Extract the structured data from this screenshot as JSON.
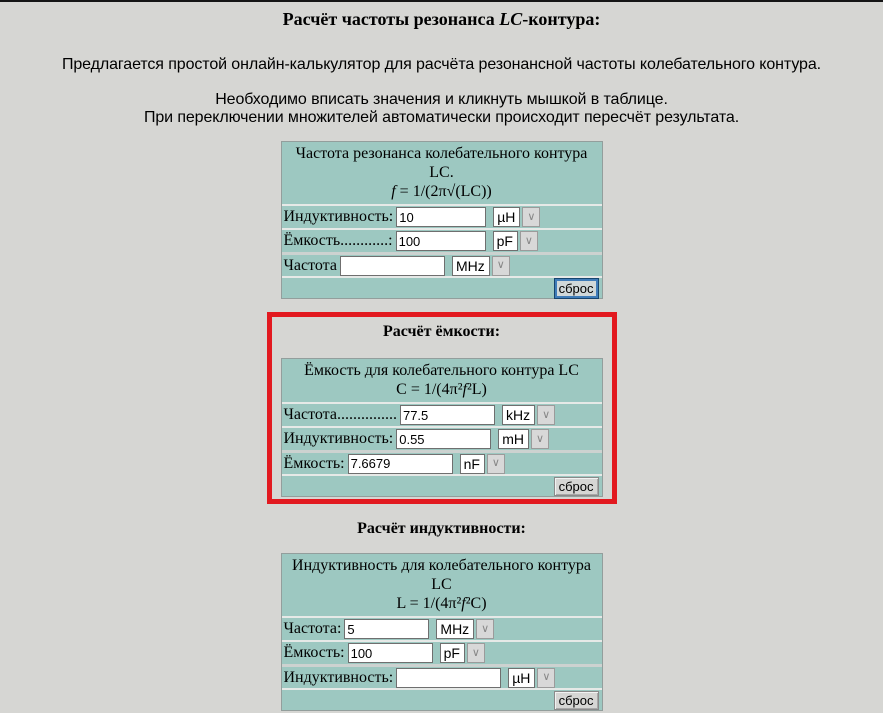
{
  "title": {
    "parts": [
      {
        "t": "Расчёт частоты резонанса "
      },
      {
        "t": "LC"
      },
      {
        "t": "-контура:"
      }
    ]
  },
  "intro": "Предлагается простой онлайн-калькулятор для расчёта резонансной частоты колебательного контура.",
  "notes": [
    "Необходимо вписать значения и кликнуть мышкой в таблице.",
    "При переключении множителей автоматически происходит пересчёт результата."
  ],
  "icons": {
    "chevron_down": "∨"
  },
  "colors": {
    "page_bg": "#d6d6d3",
    "table_bg": "#9dc8c1",
    "highlight_border": "#e2191f",
    "focus_blue": "#3f7cb8"
  },
  "sections": [
    {
      "table": {
        "header_lines": [
          "Частота резонанса колебательного контура",
          "LC."
        ],
        "formula": [
          {
            "t": "f"
          },
          {
            "t": " = 1/(2π√(LC))"
          }
        ],
        "rows": [
          {
            "label": "Индуктивность:",
            "value": "10",
            "unit": "µH"
          },
          {
            "label": "Ёмкость............:",
            "value": "100",
            "unit": "pF"
          },
          {
            "label": "Частота",
            "value": "",
            "unit": "MHz"
          }
        ],
        "reset_label": "сброс"
      }
    },
    {
      "heading": "Расчёт ёмкости:",
      "table": {
        "header_lines": [
          "Ёмкость для колебательного контура LC"
        ],
        "formula": [
          {
            "t": "C = 1/(4π²"
          },
          {
            "t": "f"
          },
          {
            "t": "²L)"
          }
        ],
        "rows": [
          {
            "label": "Частота...............",
            "value": "77.5",
            "unit": "kHz"
          },
          {
            "label": "Индуктивность:",
            "value": "0.55",
            "unit": "mH"
          },
          {
            "label": "Ёмкость:",
            "value": "7.6679",
            "unit": "nF"
          }
        ],
        "reset_label": "сброс"
      }
    },
    {
      "heading": "Расчёт индуктивности:",
      "table": {
        "header_lines": [
          "Индуктивность для колебательного контура",
          "LC"
        ],
        "formula": [
          {
            "t": "L = 1/(4π²"
          },
          {
            "t": "f"
          },
          {
            "t": "²C)"
          }
        ],
        "rows": [
          {
            "label": "Частота:",
            "value": "5",
            "unit": "MHz"
          },
          {
            "label": "Ёмкость:",
            "value": "100",
            "unit": "pF"
          },
          {
            "label": "Индуктивность:",
            "value": "",
            "unit": "µH"
          }
        ],
        "reset_label": "сброс"
      }
    }
  ]
}
